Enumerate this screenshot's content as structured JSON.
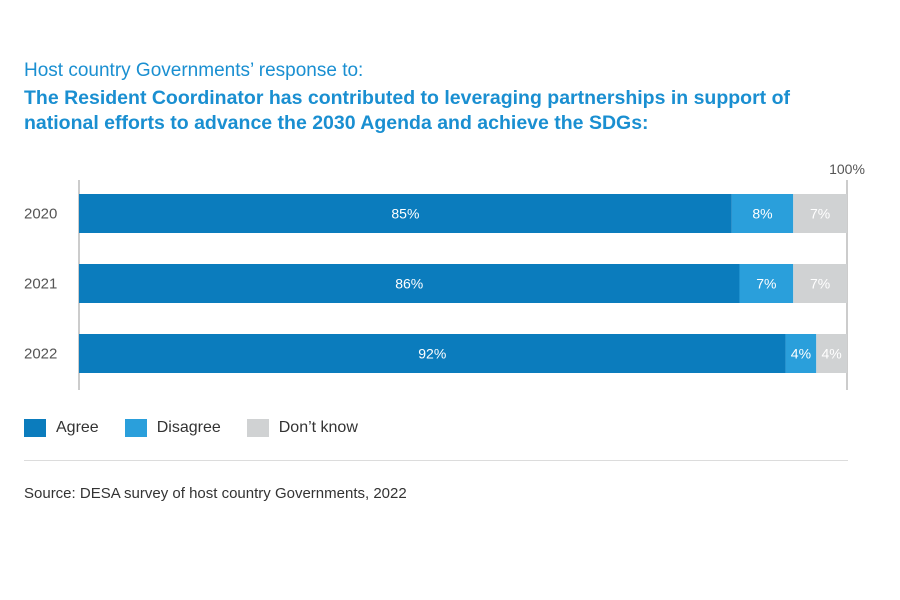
{
  "header": {
    "subtitle": "Host country Governments’ response to:",
    "title": "The Resident Coordinator has contributed to leveraging partnerships in support of national efforts to advance the 2030 Agenda and achieve the SDGs:"
  },
  "chart_data": {
    "type": "bar",
    "orientation": "horizontal",
    "stacked": true,
    "categories": [
      "2020",
      "2021",
      "2022"
    ],
    "series": [
      {
        "name": "Agree",
        "values": [
          85,
          86,
          92
        ],
        "labels": [
          "85%",
          "86%",
          "92%"
        ],
        "color": "#0b7cbd"
      },
      {
        "name": "Disagree",
        "values": [
          8,
          7,
          4
        ],
        "labels": [
          "8%",
          "7%",
          "4%"
        ],
        "color": "#2a9fdb"
      },
      {
        "name": "Don’t know",
        "values": [
          7,
          7,
          4
        ],
        "labels": [
          "7%",
          "7%",
          "4%"
        ],
        "color": "#d0d2d3"
      }
    ],
    "xlim": [
      0,
      100
    ],
    "max_label": "100%",
    "legend_position": "bottom-left",
    "grid": false
  },
  "legend": [
    {
      "label": "Agree",
      "color": "#0b7cbd"
    },
    {
      "label": "Disagree",
      "color": "#2a9fdb"
    },
    {
      "label": "Don’t know",
      "color": "#d0d2d3"
    }
  ],
  "footer": {
    "source": "Source: DESA survey of host country Governments, 2022"
  }
}
